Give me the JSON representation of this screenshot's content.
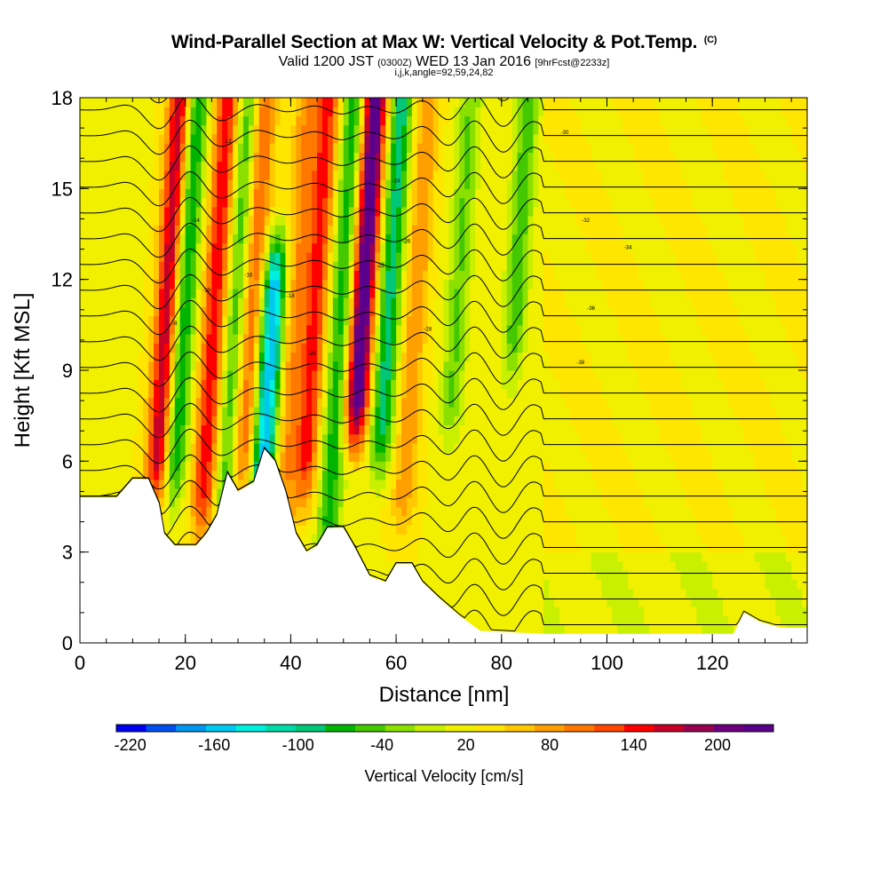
{
  "header": {
    "title_main": "Wind-Parallel Section at Max W: Vertical Velocity & Pot.Temp.",
    "title_units": "(C)",
    "valid_prefix": "Valid 1200 JST",
    "valid_utc": "(0300Z)",
    "valid_date": "WED 13 Jan 2016",
    "forecast": "[9hrFcst@2233z]",
    "params": "i,j,k,angle=92,59,24,82"
  },
  "chart_data": {
    "type": "heatmap",
    "title": "Wind-Parallel Section at Max W: Vertical Velocity & Pot.Temp.",
    "xlabel": "Distance [nm]",
    "ylabel": "Height [Kft MSL]",
    "xlim": [
      0,
      138
    ],
    "ylim": [
      0,
      18
    ],
    "x_ticks": [
      0,
      20,
      40,
      60,
      80,
      100,
      120
    ],
    "y_ticks": [
      0,
      3,
      6,
      9,
      12,
      15,
      18
    ],
    "colorbar": {
      "label": "Vertical Velocity [cm/s]",
      "min": -230,
      "max": 220,
      "step": 20,
      "tick_labels": [
        "-220",
        "-160",
        "-100",
        "-40",
        "20",
        "80",
        "140",
        "200"
      ],
      "tick_values": [
        -220,
        -160,
        -100,
        -40,
        20,
        80,
        140,
        200
      ],
      "colors": [
        "#0000f0",
        "#0050f0",
        "#0096f0",
        "#00c8f0",
        "#00f0e0",
        "#00dcaa",
        "#00c878",
        "#00b400",
        "#44c800",
        "#8ce000",
        "#c8f000",
        "#f0f000",
        "#ffe600",
        "#ffc800",
        "#ffa000",
        "#ff7800",
        "#ff4800",
        "#ff0000",
        "#c80028",
        "#9a0050",
        "#6e0080",
        "#5a008c"
      ]
    },
    "velocity_bands": [
      {
        "x": 17,
        "peak": 150,
        "top": 18,
        "bottom": 6
      },
      {
        "x": 20,
        "peak": -110,
        "top": 18,
        "bottom": 6
      },
      {
        "x": 26,
        "peak": 120,
        "top": 18,
        "bottom": 5
      },
      {
        "x": 30,
        "peak": -80,
        "top": 18,
        "bottom": 5
      },
      {
        "x": 33,
        "peak": 90,
        "top": 18,
        "bottom": 6
      },
      {
        "x": 37,
        "peak": -180,
        "top": 12,
        "bottom": 5
      },
      {
        "x": 41,
        "peak": 60,
        "top": 18,
        "bottom": 4
      },
      {
        "x": 45,
        "peak": 110,
        "top": 18,
        "bottom": 6
      },
      {
        "x": 50,
        "peak": -90,
        "top": 18,
        "bottom": 4
      },
      {
        "x": 54,
        "peak": 210,
        "top": 18,
        "bottom": 8
      },
      {
        "x": 59,
        "peak": -110,
        "top": 18,
        "bottom": 7
      },
      {
        "x": 64,
        "peak": 60,
        "top": 18,
        "bottom": 5
      },
      {
        "x": 72,
        "peak": -60,
        "top": 18,
        "bottom": 8
      },
      {
        "x": 83,
        "peak": -70,
        "top": 18,
        "bottom": 10
      }
    ],
    "terrain_height": [
      [
        0,
        4.8
      ],
      [
        7,
        4.8
      ],
      [
        10,
        5.4
      ],
      [
        13,
        5.4
      ],
      [
        15,
        4.6
      ],
      [
        16,
        3.6
      ],
      [
        18,
        3.2
      ],
      [
        22,
        3.2
      ],
      [
        24,
        3.6
      ],
      [
        26,
        4.2
      ],
      [
        28,
        5.6
      ],
      [
        30,
        5.0
      ],
      [
        33,
        5.3
      ],
      [
        35,
        6.4
      ],
      [
        37,
        6.0
      ],
      [
        39,
        5.0
      ],
      [
        41,
        3.6
      ],
      [
        43,
        3.0
      ],
      [
        45,
        3.2
      ],
      [
        47,
        3.8
      ],
      [
        50,
        3.8
      ],
      [
        52,
        3.2
      ],
      [
        55,
        2.2
      ],
      [
        58,
        2.0
      ],
      [
        60,
        2.6
      ],
      [
        63,
        2.6
      ],
      [
        65,
        2.0
      ],
      [
        68,
        1.5
      ],
      [
        72,
        0.9
      ],
      [
        76,
        0.4
      ],
      [
        88,
        0.3
      ],
      [
        124,
        0.3
      ],
      [
        126,
        1.0
      ],
      [
        129,
        0.7
      ],
      [
        133,
        0.5
      ],
      [
        138,
        0.5
      ]
    ],
    "theta_contour_labels": [
      "-8",
      "-10",
      "-12",
      "-14",
      "-16",
      "-18",
      "-20",
      "-22",
      "-24",
      "-26",
      "-28",
      "-30",
      "-32",
      "-34",
      "-36",
      "-38"
    ]
  }
}
